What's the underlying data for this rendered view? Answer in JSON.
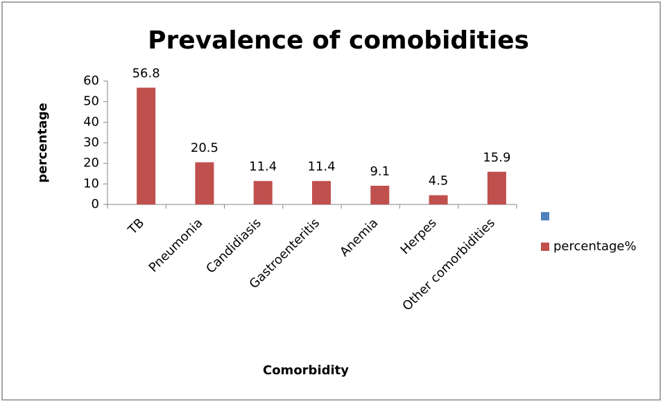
{
  "chart_data": {
    "type": "bar",
    "title": "Prevalence of comobidities",
    "x_label": "Comorbidity",
    "y_label": "percentage",
    "categories": [
      "TB",
      "Pneumonia",
      "Candidiasis",
      "Gastroenteritis",
      "Anemia",
      "Herpes",
      "Other comorbidities"
    ],
    "series": [
      {
        "name": null,
        "color": "#4f81bd",
        "values": [
          null,
          null,
          null,
          null,
          null,
          null,
          null
        ]
      },
      {
        "name": "percentage%",
        "color": "#c0504d",
        "values": [
          56.8,
          20.5,
          11.4,
          11.4,
          9.1,
          4.5,
          15.9
        ]
      }
    ],
    "ylim": [
      0,
      60
    ],
    "yticks": [
      0,
      10,
      20,
      30,
      40,
      50,
      60
    ],
    "legend": "right"
  }
}
